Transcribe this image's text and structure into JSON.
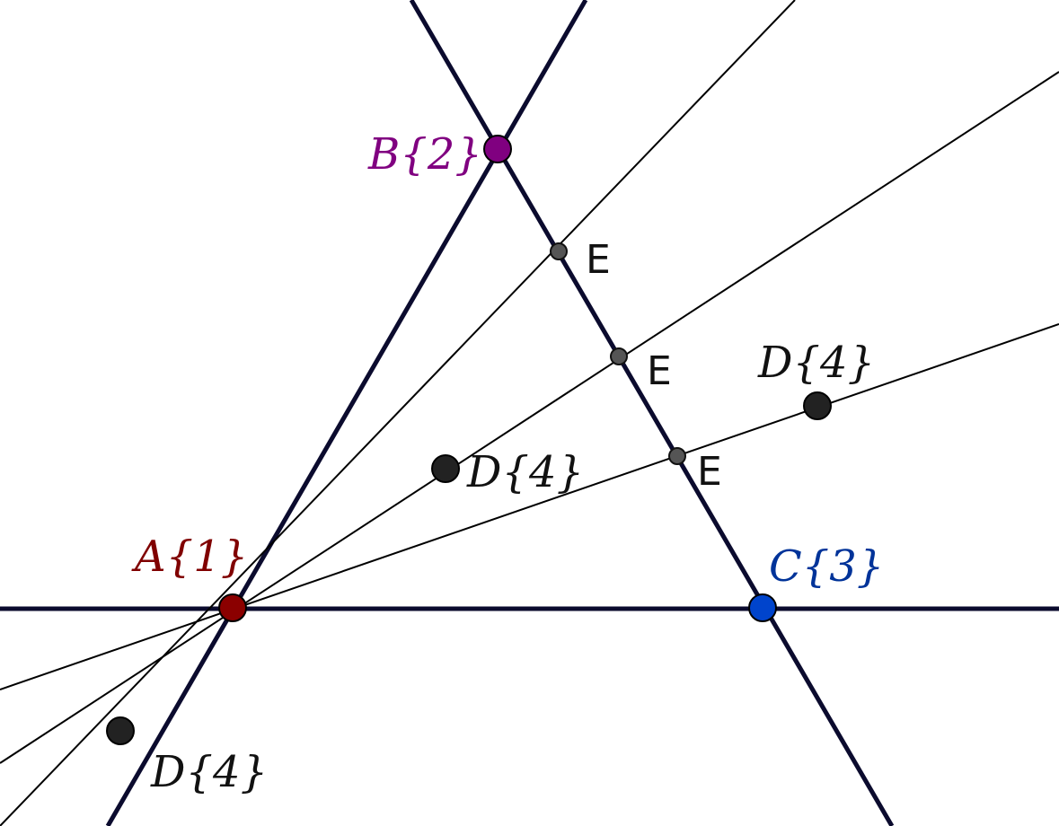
{
  "colors": {
    "main_line": "#0b0b2e",
    "thin_line": "#000000",
    "point_A": "#8b0000",
    "point_B": "#800080",
    "point_C": "#0044cc",
    "point_D": "#222222",
    "point_E": "#555555",
    "label_A": "#800000",
    "label_B": "#800080",
    "label_C": "#003399",
    "label_D": "#111111",
    "label_E": "#111111"
  },
  "labels": {
    "A": "A{1}",
    "B": "B{2}",
    "C": "C{3}",
    "D1": "D{4}",
    "D2": "D{4}",
    "D3": "D{4}",
    "E1": "E",
    "E2": "E",
    "E3": "E"
  }
}
